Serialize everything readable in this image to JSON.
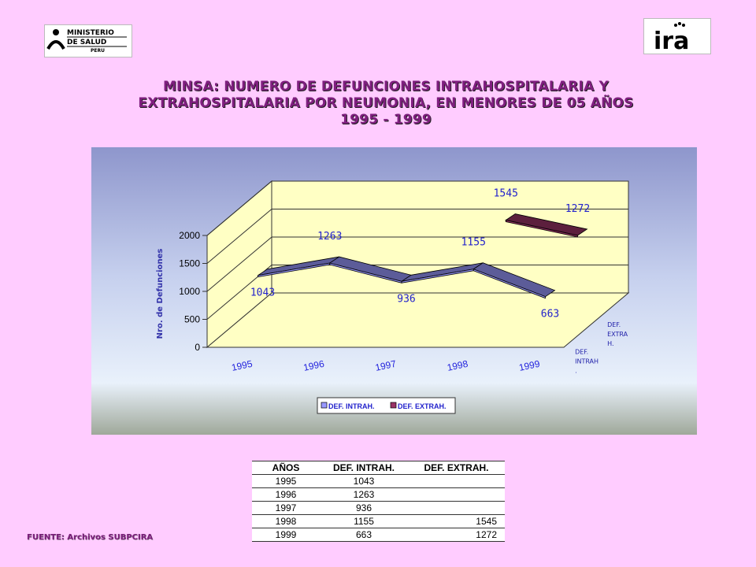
{
  "logos": {
    "minsa": {
      "line1": "MINISTERIO",
      "line2": "DE SALUD",
      "line3": "PERU"
    },
    "ira": {
      "text": "ira"
    }
  },
  "title": {
    "line1": "MINSA: NUMERO DE DEFUNCIONES INTRAHOSPITALARIA Y",
    "line2": "EXTRAHOSPITALARIA POR NEUMONIA, EN MENORES DE 05 AÑOS",
    "line3": "1995 - 1999"
  },
  "chart_data": {
    "type": "line",
    "subtype": "3d-ribbon",
    "categories": [
      "1995",
      "1996",
      "1997",
      "1998",
      "1999"
    ],
    "series": [
      {
        "name": "DEF. INTRAH.",
        "color": "#9999ff",
        "values": [
          1043,
          1263,
          936,
          1155,
          663
        ]
      },
      {
        "name": "DEF. EXTRAH.",
        "color": "#993366",
        "values": [
          null,
          null,
          null,
          1545,
          1272
        ]
      }
    ],
    "depth_labels": [
      "DEF. INTRAH .",
      "DEF. EXTRA H."
    ],
    "ylabel": "Nro. de Defunciones",
    "ylim": [
      0,
      2000
    ],
    "yticks": [
      "0",
      "500",
      "1000",
      "1500",
      "2000"
    ],
    "legend_position": "bottom",
    "grid": true
  },
  "table": {
    "headers": [
      "AÑOS",
      "DEF. INTRAH.",
      "DEF. EXTRAH."
    ],
    "rows": [
      [
        "1995",
        "1043",
        ""
      ],
      [
        "1996",
        "1263",
        ""
      ],
      [
        "1997",
        "936",
        ""
      ],
      [
        "1998",
        "1155",
        "1545"
      ],
      [
        "1999",
        "663",
        "1272"
      ]
    ]
  },
  "source": "FUENTE: Archivos SUBPCIRA"
}
